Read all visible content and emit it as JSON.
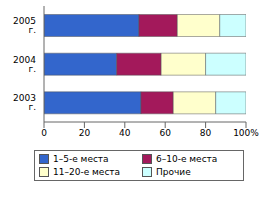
{
  "chart_data": {
    "type": "bar",
    "orientation": "horizontal",
    "stacked": true,
    "grid": false,
    "legend": "bottom",
    "categories": [
      "2005 г.",
      "2004 г.",
      "2003 г."
    ],
    "series": [
      {
        "name": "1–5-е места",
        "color": "#3366CC",
        "values": [
          47,
          36,
          48
        ]
      },
      {
        "name": "6–10-е места",
        "color": "#A3195B",
        "values": [
          19,
          22,
          16
        ]
      },
      {
        "name": "11–20-е места",
        "color": "#FFFFCC",
        "values": [
          21,
          22,
          21
        ]
      },
      {
        "name": "Прочие",
        "color": "#CCFFFF",
        "values": [
          13,
          20,
          15
        ]
      }
    ],
    "xlim": [
      0,
      100
    ],
    "xticks": [
      0,
      20,
      40,
      60,
      80,
      {
        "value": 100,
        "label": "100%"
      }
    ]
  }
}
